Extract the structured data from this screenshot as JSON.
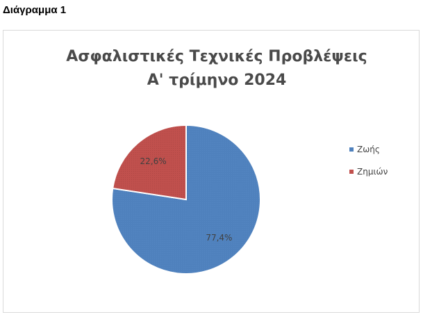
{
  "caption": "Διάγραμμα 1",
  "chart_data": {
    "type": "pie",
    "title_lines": [
      "Ασφαλιστικές Τεχνικές Προβλέψεις",
      "Α' τρίμηνο 2024"
    ],
    "categories": [
      "Ζωής",
      "Ζημιών"
    ],
    "values": [
      77.4,
      22.6
    ],
    "data_labels": [
      "77,4%",
      "22,6%"
    ],
    "colors": [
      "#4f81bd",
      "#c0504d"
    ],
    "legend_position": "right"
  }
}
